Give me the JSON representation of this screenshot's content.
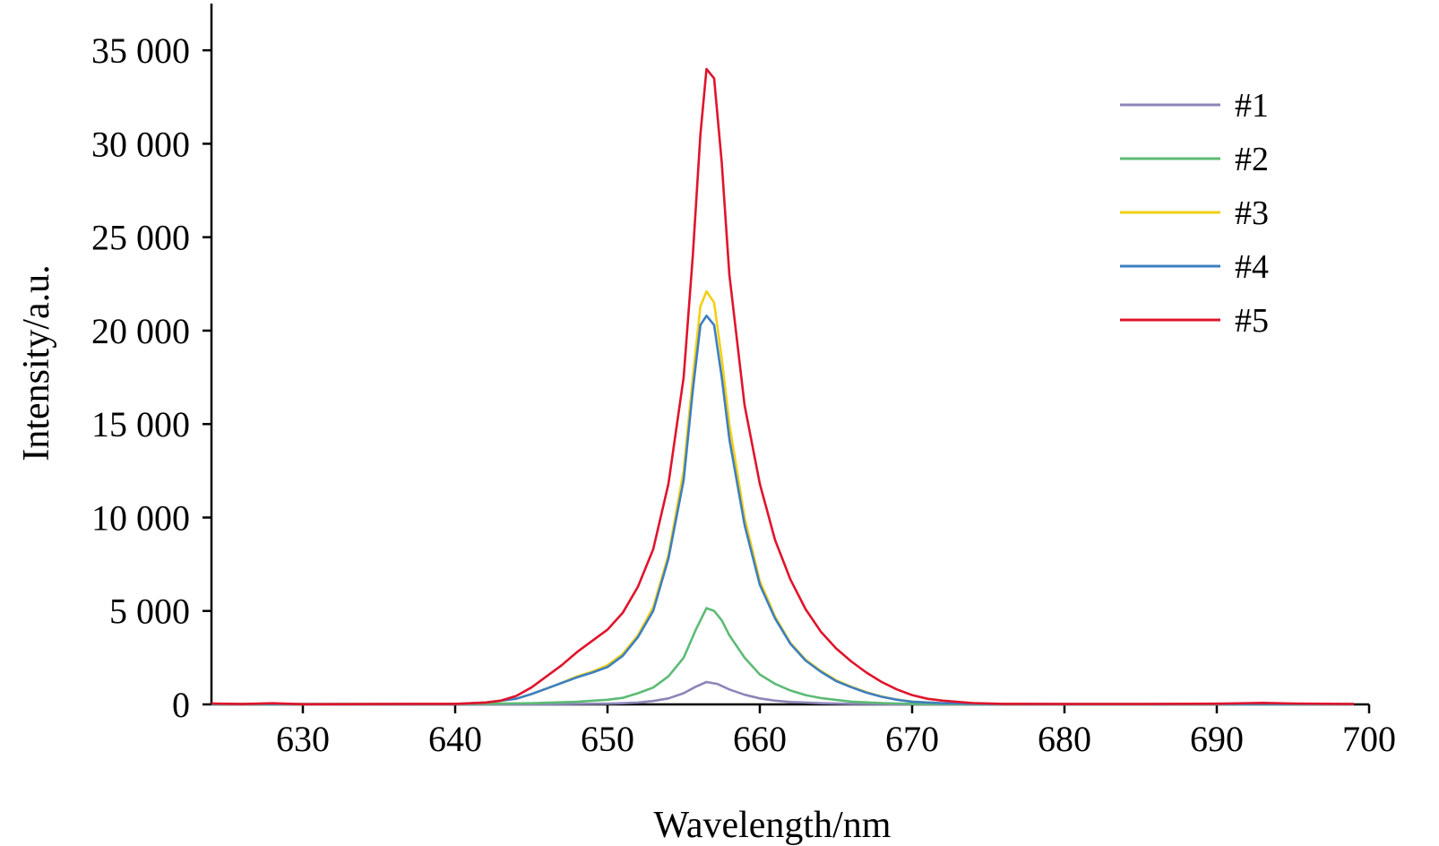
{
  "chart_data": {
    "type": "line",
    "title": "",
    "xlabel": "Wavelength/nm",
    "ylabel": "Intensity/a.u.",
    "xlim": [
      624,
      700
    ],
    "ylim": [
      0,
      37500
    ],
    "x_ticks": [
      630,
      640,
      650,
      660,
      670,
      680,
      690,
      700
    ],
    "x_tick_labels": [
      "630",
      "640",
      "650",
      "660",
      "670",
      "680",
      "690",
      "700"
    ],
    "y_ticks": [
      0,
      5000,
      10000,
      15000,
      20000,
      25000,
      30000,
      35000
    ],
    "y_tick_labels": [
      "0",
      "5 000",
      "10 000",
      "15 000",
      "20 000",
      "25 000",
      "30 000",
      "35 000"
    ],
    "grid": false,
    "legend_position": "top-right",
    "x_data_end": 699,
    "series": [
      {
        "name": "#1",
        "color": "#8b86b8",
        "points": [
          [
            624,
            10
          ],
          [
            630,
            5
          ],
          [
            640,
            5
          ],
          [
            645,
            10
          ],
          [
            648,
            25
          ],
          [
            650,
            40
          ],
          [
            651,
            60
          ],
          [
            652,
            100
          ],
          [
            653,
            180
          ],
          [
            654,
            320
          ],
          [
            655,
            600
          ],
          [
            655.8,
            950
          ],
          [
            656.5,
            1200
          ],
          [
            657.2,
            1100
          ],
          [
            658,
            800
          ],
          [
            659,
            520
          ],
          [
            660,
            320
          ],
          [
            661,
            200
          ],
          [
            662,
            130
          ],
          [
            664,
            60
          ],
          [
            666,
            30
          ],
          [
            670,
            10
          ],
          [
            680,
            5
          ],
          [
            690,
            5
          ],
          [
            699,
            5
          ]
        ]
      },
      {
        "name": "#2",
        "color": "#5cbb75",
        "points": [
          [
            624,
            10
          ],
          [
            630,
            10
          ],
          [
            640,
            20
          ],
          [
            645,
            60
          ],
          [
            648,
            140
          ],
          [
            650,
            250
          ],
          [
            651,
            350
          ],
          [
            652,
            600
          ],
          [
            653,
            900
          ],
          [
            654,
            1500
          ],
          [
            655,
            2500
          ],
          [
            655.8,
            4000
          ],
          [
            656.5,
            5150
          ],
          [
            657,
            5000
          ],
          [
            657.5,
            4500
          ],
          [
            658,
            3700
          ],
          [
            659,
            2500
          ],
          [
            660,
            1600
          ],
          [
            661,
            1100
          ],
          [
            662,
            750
          ],
          [
            663,
            500
          ],
          [
            664,
            340
          ],
          [
            666,
            150
          ],
          [
            668,
            70
          ],
          [
            670,
            30
          ],
          [
            675,
            10
          ],
          [
            680,
            10
          ],
          [
            690,
            10
          ],
          [
            699,
            10
          ]
        ]
      },
      {
        "name": "#3",
        "color": "#f2d013",
        "points": [
          [
            624,
            20
          ],
          [
            630,
            20
          ],
          [
            640,
            20
          ],
          [
            642,
            100
          ],
          [
            644,
            300
          ],
          [
            645,
            550
          ],
          [
            646,
            850
          ],
          [
            647,
            1150
          ],
          [
            648,
            1500
          ],
          [
            649,
            1750
          ],
          [
            650,
            2100
          ],
          [
            651,
            2700
          ],
          [
            652,
            3700
          ],
          [
            653,
            5200
          ],
          [
            654,
            8000
          ],
          [
            655,
            12500
          ],
          [
            655.6,
            17500
          ],
          [
            656.1,
            21300
          ],
          [
            656.5,
            22100
          ],
          [
            657,
            21500
          ],
          [
            657.5,
            18500
          ],
          [
            658,
            15000
          ],
          [
            659,
            10000
          ],
          [
            660,
            6600
          ],
          [
            661,
            4700
          ],
          [
            662,
            3300
          ],
          [
            663,
            2400
          ],
          [
            664,
            1800
          ],
          [
            665,
            1300
          ],
          [
            666,
            950
          ],
          [
            667,
            650
          ],
          [
            668,
            420
          ],
          [
            669,
            260
          ],
          [
            670,
            150
          ],
          [
            672,
            60
          ],
          [
            675,
            20
          ],
          [
            680,
            20
          ],
          [
            690,
            20
          ],
          [
            699,
            20
          ]
        ]
      },
      {
        "name": "#4",
        "color": "#3d7fc1",
        "points": [
          [
            624,
            20
          ],
          [
            630,
            20
          ],
          [
            640,
            20
          ],
          [
            642,
            100
          ],
          [
            644,
            300
          ],
          [
            645,
            550
          ],
          [
            646,
            850
          ],
          [
            647,
            1150
          ],
          [
            648,
            1450
          ],
          [
            649,
            1700
          ],
          [
            650,
            2000
          ],
          [
            651,
            2600
          ],
          [
            652,
            3600
          ],
          [
            653,
            5000
          ],
          [
            654,
            7800
          ],
          [
            655,
            12000
          ],
          [
            655.6,
            16800
          ],
          [
            656.1,
            20300
          ],
          [
            656.5,
            20800
          ],
          [
            657,
            20300
          ],
          [
            657.5,
            17500
          ],
          [
            658,
            14200
          ],
          [
            659,
            9600
          ],
          [
            660,
            6400
          ],
          [
            661,
            4600
          ],
          [
            662,
            3250
          ],
          [
            663,
            2350
          ],
          [
            664,
            1750
          ],
          [
            665,
            1250
          ],
          [
            666,
            920
          ],
          [
            667,
            630
          ],
          [
            668,
            410
          ],
          [
            669,
            250
          ],
          [
            670,
            140
          ],
          [
            672,
            60
          ],
          [
            675,
            20
          ],
          [
            680,
            20
          ],
          [
            690,
            20
          ],
          [
            699,
            20
          ]
        ]
      },
      {
        "name": "#5",
        "color": "#e0142b",
        "points": [
          [
            624,
            50
          ],
          [
            626,
            20
          ],
          [
            628,
            60
          ],
          [
            630,
            10
          ],
          [
            635,
            20
          ],
          [
            638,
            30
          ],
          [
            640,
            30
          ],
          [
            642,
            100
          ],
          [
            643,
            200
          ],
          [
            644,
            450
          ],
          [
            645,
            900
          ],
          [
            646,
            1500
          ],
          [
            647,
            2100
          ],
          [
            648,
            2800
          ],
          [
            649,
            3400
          ],
          [
            650,
            4000
          ],
          [
            651,
            4900
          ],
          [
            652,
            6300
          ],
          [
            653,
            8300
          ],
          [
            654,
            11800
          ],
          [
            655,
            17500
          ],
          [
            655.6,
            24000
          ],
          [
            656.1,
            30500
          ],
          [
            656.5,
            34000
          ],
          [
            657,
            33500
          ],
          [
            657.5,
            29000
          ],
          [
            658,
            23000
          ],
          [
            659,
            16000
          ],
          [
            660,
            11800
          ],
          [
            661,
            8800
          ],
          [
            662,
            6700
          ],
          [
            663,
            5100
          ],
          [
            664,
            3900
          ],
          [
            665,
            3000
          ],
          [
            666,
            2300
          ],
          [
            667,
            1700
          ],
          [
            668,
            1200
          ],
          [
            669,
            800
          ],
          [
            670,
            500
          ],
          [
            671,
            300
          ],
          [
            672,
            200
          ],
          [
            674,
            70
          ],
          [
            676,
            30
          ],
          [
            680,
            20
          ],
          [
            685,
            20
          ],
          [
            690,
            40
          ],
          [
            693,
            80
          ],
          [
            695,
            50
          ],
          [
            699,
            20
          ]
        ]
      }
    ]
  }
}
